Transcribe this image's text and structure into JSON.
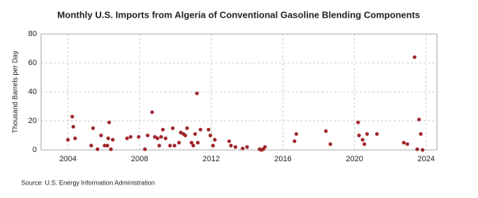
{
  "chart_data": {
    "type": "scatter",
    "title": "Monthly U.S. Imports from Algeria of Conventional Gasoline Blending Components",
    "y_label": "Thousand Barrels per Day",
    "source": "Source: U.S. Energy Information Administration",
    "color": "#a0262b",
    "grid": true,
    "xlim": [
      2002.5,
      2024.6
    ],
    "xticks": [
      2004,
      2008,
      2012,
      2016,
      2020,
      2024
    ],
    "ylim": [
      0,
      80
    ],
    "yticks": [
      0,
      20,
      40,
      60,
      80
    ],
    "x": [
      2004.0,
      2004.24,
      2004.3,
      2004.4,
      2005.3,
      2005.4,
      2005.65,
      2005.85,
      2006.05,
      2006.2,
      2006.25,
      2006.3,
      2006.4,
      2006.5,
      2007.3,
      2007.5,
      2007.95,
      2008.3,
      2008.45,
      2008.7,
      2008.85,
      2009.0,
      2009.1,
      2009.2,
      2009.3,
      2009.45,
      2009.7,
      2009.85,
      2009.95,
      2010.2,
      2010.3,
      2010.45,
      2010.55,
      2010.65,
      2010.9,
      2011.0,
      2011.1,
      2011.2,
      2011.25,
      2011.4,
      2011.85,
      2011.95,
      2012.1,
      2012.2,
      2013.0,
      2013.1,
      2013.35,
      2013.75,
      2014.0,
      2014.7,
      2014.8,
      2014.9,
      2015.0,
      2016.65,
      2016.75,
      2018.4,
      2018.65,
      2020.2,
      2020.25,
      2020.45,
      2020.55,
      2020.7,
      2021.25,
      2022.75,
      2022.95,
      2023.35,
      2023.5,
      2023.6,
      2023.7,
      2023.8
    ],
    "values": [
      7,
      23,
      16,
      8,
      3,
      15,
      0.5,
      10,
      3,
      3,
      8,
      19,
      0.5,
      7,
      8,
      9,
      9,
      0.5,
      10,
      26,
      9,
      8,
      3,
      9,
      14,
      8,
      3,
      15,
      3,
      5,
      12,
      11,
      10,
      15,
      5,
      3,
      11,
      39,
      5,
      14,
      14,
      10,
      3,
      7,
      6,
      3,
      2,
      1,
      2,
      0.5,
      0,
      0.5,
      2,
      6,
      11,
      13,
      4,
      19,
      10,
      7,
      4,
      11,
      11,
      5,
      4,
      64,
      0.5,
      21,
      11,
      0
    ]
  }
}
